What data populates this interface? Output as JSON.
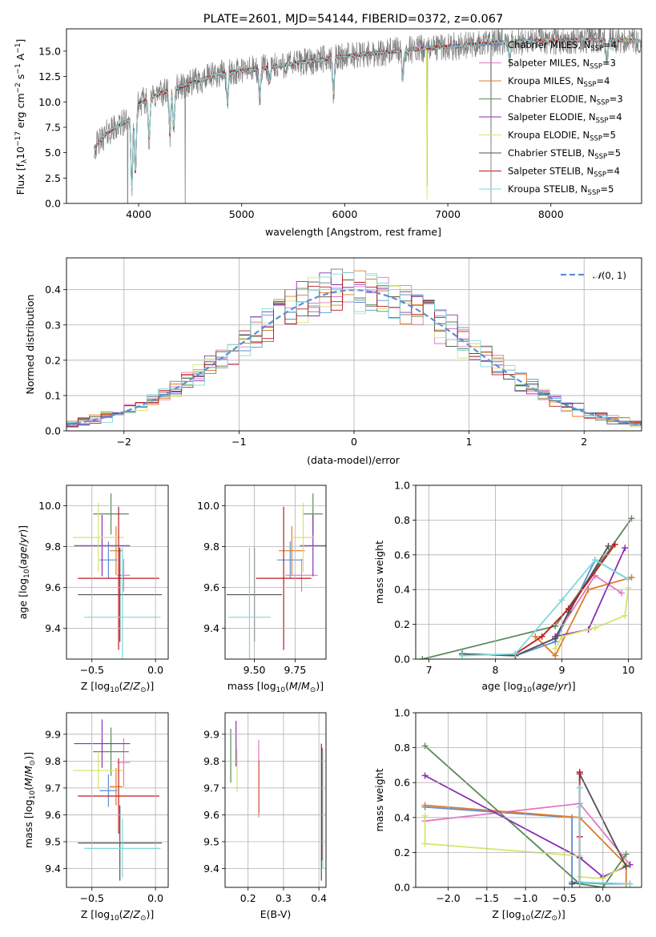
{
  "chart_data": [
    {
      "id": "spectrum",
      "type": "line",
      "title": "PLATE=2601, MJD=54144, FIBERID=0372, z=0.067",
      "xlabel": "wavelength [Angstrom, rest frame]",
      "ylabel": "Flux [fλ10⁻¹⁷ erg cm⁻² s⁻¹ A⁻¹]",
      "xlim": [
        3300,
        8880
      ],
      "ylim": [
        0,
        17.2
      ],
      "xticks": [
        4000,
        5000,
        6000,
        7000,
        8000
      ],
      "yticks": [
        0.0,
        2.5,
        5.0,
        7.5,
        10.0,
        12.5,
        15.0
      ],
      "data_color": "#808080",
      "x_range": [
        3570,
        8880
      ],
      "continuum": [
        [
          3570,
          5.5
        ],
        [
          3700,
          7.0
        ],
        [
          3900,
          8.2
        ],
        [
          4000,
          9.8
        ],
        [
          4200,
          10.8
        ],
        [
          4500,
          11.8
        ],
        [
          4800,
          12.8
        ],
        [
          5200,
          13.3
        ],
        [
          5600,
          13.9
        ],
        [
          6000,
          14.5
        ],
        [
          6500,
          15.0
        ],
        [
          6800,
          15.3
        ],
        [
          7100,
          15.5
        ],
        [
          7400,
          15.8
        ],
        [
          7800,
          16.0
        ],
        [
          8200,
          16.1
        ],
        [
          8600,
          16.1
        ],
        [
          8880,
          16.0
        ]
      ],
      "absorption": [
        [
          3934,
          7.5
        ],
        [
          3969,
          6.5
        ],
        [
          4102,
          4.0
        ],
        [
          4304,
          4.5
        ],
        [
          4340,
          4.0
        ],
        [
          4861,
          3.0
        ],
        [
          5175,
          3.0
        ],
        [
          5270,
          1.5
        ],
        [
          5890,
          3.5
        ],
        [
          6563,
          3.0
        ],
        [
          7600,
          2.0
        ],
        [
          8542,
          2.5
        ]
      ],
      "spikes": [
        [
          3895,
          -15.0
        ],
        [
          4452,
          -15.0
        ],
        [
          6800,
          -15.0
        ],
        [
          7420,
          -15.0
        ]
      ],
      "noise": 1.0,
      "series": [
        {
          "name": "Chabrier MILES, N_SSP=4",
          "color": "#5b8fd6"
        },
        {
          "name": "Salpeter MILES, N_SSP=3",
          "color": "#e377c2"
        },
        {
          "name": "Kroupa MILES, N_SSP=4",
          "color": "#e07b27"
        },
        {
          "name": "Chabrier ELODIE, N_SSP=3",
          "color": "#5a8a5a"
        },
        {
          "name": "Salpeter ELODIE, N_SSP=4",
          "color": "#8a2db3"
        },
        {
          "name": "Kroupa ELODIE, N_SSP=5",
          "color": "#d4e66b"
        },
        {
          "name": "Chabrier STELIB, N_SSP=5",
          "color": "#505050"
        },
        {
          "name": "Salpeter STELIB, N_SSP=4",
          "color": "#c0191f"
        },
        {
          "name": "Kroupa STELIB, N_SSP=5",
          "color": "#7fd8dc"
        }
      ],
      "legend_labels": [
        {
          "pre": "Chabrier MILES, N",
          "sub": "SSP",
          "post": "=4"
        },
        {
          "pre": "Salpeter MILES, N",
          "sub": "SSP",
          "post": "=3"
        },
        {
          "pre": "Kroupa MILES, N",
          "sub": "SSP",
          "post": "=4"
        },
        {
          "pre": "Chabrier ELODIE, N",
          "sub": "SSP",
          "post": "=3"
        },
        {
          "pre": "Salpeter ELODIE, N",
          "sub": "SSP",
          "post": "=4"
        },
        {
          "pre": "Kroupa ELODIE, N",
          "sub": "SSP",
          "post": "=5"
        },
        {
          "pre": "Chabrier STELIB, N",
          "sub": "SSP",
          "post": "=5"
        },
        {
          "pre": "Salpeter STELIB, N",
          "sub": "SSP",
          "post": "=4"
        },
        {
          "pre": "Kroupa STELIB, N",
          "sub": "SSP",
          "post": "=5"
        }
      ],
      "legend_position": "right"
    },
    {
      "id": "residuals",
      "type": "histogram",
      "xlabel": "(data-model)/error",
      "ylabel": "Normed distribution",
      "xlim": [
        -2.5,
        2.5
      ],
      "ylim": [
        0,
        0.49
      ],
      "xticks": [
        -2,
        -1,
        0,
        1,
        2
      ],
      "yticks": [
        0.0,
        0.1,
        0.2,
        0.3,
        0.4
      ],
      "bin_width": 0.1,
      "bin_start": -2.5,
      "reference": {
        "name": "N(0,1)",
        "color": "#5b8fd6",
        "style": "dashed",
        "sigma": 1.0
      },
      "legend_position": "top-right",
      "grid": true
    },
    {
      "id": "z_age",
      "type": "errorbar",
      "xlabel": "Z [log10(Z/Z⊙)]",
      "ylabel": "age [log10(age/yr)]",
      "xlim": [
        -0.7,
        0.1
      ],
      "ylim": [
        9.25,
        10.1
      ],
      "xticks": [
        -0.5,
        0.0
      ],
      "yticks": [
        9.4,
        9.6,
        9.8,
        10.0
      ],
      "points": [
        {
          "x": -0.37,
          "xerr": 0.07,
          "y": 9.735,
          "yerr": 0.09,
          "color": "#5b8fd6"
        },
        {
          "x": -0.25,
          "xerr": 0.05,
          "y": 9.66,
          "yerr": 0.08,
          "color": "#e377c2"
        },
        {
          "x": -0.31,
          "xerr": 0.05,
          "y": 9.78,
          "yerr": 0.12,
          "color": "#e07b27"
        },
        {
          "x": -0.35,
          "xerr": 0.14,
          "y": 9.96,
          "yerr": 0.1,
          "color": "#5a8a5a"
        },
        {
          "x": -0.42,
          "xerr": 0.22,
          "y": 9.805,
          "yerr": 0.15,
          "color": "#8a2db3"
        },
        {
          "x": -0.45,
          "xerr": 0.2,
          "y": 9.845,
          "yerr": 0.17,
          "color": "#d4e66b"
        },
        {
          "x": -0.28,
          "xerr": 0.33,
          "y": 9.565,
          "yerr": 0.23,
          "color": "#505050"
        },
        {
          "x": -0.29,
          "xerr": 0.32,
          "y": 9.645,
          "yerr": 0.35,
          "color": "#c0191f"
        },
        {
          "x": -0.26,
          "xerr": 0.3,
          "y": 9.455,
          "yerr": 0.34,
          "color": "#7fd8dc"
        }
      ]
    },
    {
      "id": "mass_age",
      "type": "errorbar",
      "xlabel": "mass [log10(M/M⊙)]",
      "ylabel": "",
      "xlim": [
        9.32,
        9.94
      ],
      "ylim": [
        9.25,
        10.1
      ],
      "xticks": [
        9.5,
        9.75
      ],
      "xtick_labels": [
        "9.50",
        "9.75"
      ],
      "yticks": [
        9.4,
        9.6,
        9.8,
        10.0
      ],
      "points": [
        {
          "x": 9.72,
          "xerr": 0.08,
          "y": 9.735,
          "yerr": 0.09,
          "color": "#5b8fd6"
        },
        {
          "x": 9.79,
          "xerr": 0.1,
          "y": 9.66,
          "yerr": 0.08,
          "color": "#e377c2"
        },
        {
          "x": 9.73,
          "xerr": 0.08,
          "y": 9.78,
          "yerr": 0.12,
          "color": "#e07b27"
        },
        {
          "x": 9.86,
          "xerr": 0.06,
          "y": 9.96,
          "yerr": 0.1,
          "color": "#5a8a5a"
        },
        {
          "x": 9.86,
          "xerr": 0.08,
          "y": 9.805,
          "yerr": 0.15,
          "color": "#8a2db3"
        },
        {
          "x": 9.8,
          "xerr": 0.07,
          "y": 9.845,
          "yerr": 0.17,
          "color": "#d4e66b"
        },
        {
          "x": 9.5,
          "xerr": 0.17,
          "y": 9.565,
          "yerr": 0.23,
          "color": "#505050"
        },
        {
          "x": 9.68,
          "xerr": 0.17,
          "y": 9.645,
          "yerr": 0.35,
          "color": "#c0191f"
        },
        {
          "x": 9.47,
          "xerr": 0.13,
          "y": 9.455,
          "yerr": 0.34,
          "color": "#7fd8dc"
        }
      ]
    },
    {
      "id": "age_weight",
      "type": "line",
      "xlabel": "age [log10(age/yr)]",
      "ylabel": "mass weight",
      "xlim": [
        6.8,
        10.2
      ],
      "ylim": [
        0,
        1
      ],
      "xticks": [
        7,
        8,
        9,
        10
      ],
      "yticks": [
        0.0,
        0.2,
        0.4,
        0.6,
        0.8,
        1.0
      ],
      "series": [
        {
          "color": "#5b8fd6",
          "x": [
            7.5,
            8.3,
            8.9,
            9.5,
            10.0
          ],
          "y": [
            0.03,
            0.02,
            0.1,
            0.57,
            0.46
          ]
        },
        {
          "color": "#e377c2",
          "x": [
            8.9,
            9.5,
            9.9
          ],
          "y": [
            0.13,
            0.48,
            0.38
          ]
        },
        {
          "color": "#e07b27",
          "x": [
            8.6,
            8.9,
            9.4,
            10.05
          ],
          "y": [
            0.13,
            0.02,
            0.4,
            0.47
          ]
        },
        {
          "color": "#5a8a5a",
          "x": [
            6.9,
            8.9,
            10.05
          ],
          "y": [
            0.0,
            0.19,
            0.81
          ]
        },
        {
          "color": "#8a2db3",
          "x": [
            8.9,
            9.4,
            9.95
          ],
          "y": [
            0.13,
            0.17,
            0.64
          ]
        },
        {
          "color": "#d4e66b",
          "x": [
            8.9,
            9.0,
            9.5,
            9.95,
            10.0
          ],
          "y": [
            0.06,
            0.13,
            0.18,
            0.25,
            0.41
          ]
        },
        {
          "color": "#505050",
          "x": [
            7.5,
            8.3,
            8.9,
            9.1,
            9.7
          ],
          "y": [
            0.03,
            0.02,
            0.12,
            0.27,
            0.65
          ]
        },
        {
          "color": "#c0191f",
          "x": [
            8.3,
            8.7,
            9.1,
            9.8
          ],
          "y": [
            0.03,
            0.13,
            0.29,
            0.66
          ]
        },
        {
          "color": "#7fd8dc",
          "x": [
            7.5,
            8.3,
            9.0,
            9.5,
            10.0
          ],
          "y": [
            0.02,
            0.03,
            0.34,
            0.57,
            0.46
          ]
        }
      ],
      "grid": true
    },
    {
      "id": "z_mass",
      "type": "errorbar",
      "xlabel": "Z [log10(Z/Z⊙)]",
      "ylabel": "mass [log10(M/M⊙)]",
      "xlim": [
        -0.7,
        0.1
      ],
      "ylim": [
        9.33,
        9.98
      ],
      "xticks": [
        -0.5,
        0.0
      ],
      "yticks": [
        9.4,
        9.5,
        9.6,
        9.7,
        9.8,
        9.9
      ],
      "points": [
        {
          "x": -0.37,
          "xerr": 0.07,
          "y": 9.69,
          "yerr": 0.06,
          "color": "#5b8fd6"
        },
        {
          "x": -0.25,
          "xerr": 0.05,
          "y": 9.795,
          "yerr": 0.09,
          "color": "#e377c2"
        },
        {
          "x": -0.31,
          "xerr": 0.05,
          "y": 9.705,
          "yerr": 0.07,
          "color": "#e07b27"
        },
        {
          "x": -0.35,
          "xerr": 0.14,
          "y": 9.835,
          "yerr": 0.09,
          "color": "#5a8a5a"
        },
        {
          "x": -0.42,
          "xerr": 0.22,
          "y": 9.865,
          "yerr": 0.09,
          "color": "#8a2db3"
        },
        {
          "x": -0.45,
          "xerr": 0.2,
          "y": 9.765,
          "yerr": 0.07,
          "color": "#d4e66b"
        },
        {
          "x": -0.28,
          "xerr": 0.33,
          "y": 9.495,
          "yerr": 0.14,
          "color": "#505050"
        },
        {
          "x": -0.29,
          "xerr": 0.32,
          "y": 9.67,
          "yerr": 0.14,
          "color": "#c0191f"
        },
        {
          "x": -0.26,
          "xerr": 0.3,
          "y": 9.475,
          "yerr": 0.11,
          "color": "#7fd8dc"
        }
      ]
    },
    {
      "id": "ebv_mass",
      "type": "errorbar",
      "xlabel": "E(B-V)",
      "ylabel": "",
      "xlim": [
        0.135,
        0.42
      ],
      "ylim": [
        9.33,
        9.98
      ],
      "xticks": [
        0.2,
        0.3,
        0.4
      ],
      "xtick_labels": [
        "0.2",
        "0.3",
        "0.4"
      ],
      "yticks": [
        9.4,
        9.5,
        9.6,
        9.7,
        9.8,
        9.9
      ],
      "points": [
        {
          "x": 0.23,
          "xerr": 0,
          "y": 9.735,
          "yerr": 0.145,
          "color": "#e377c2"
        },
        {
          "x": 0.151,
          "xerr": 0,
          "y": 9.82,
          "yerr": 0.1,
          "color": "#5a8a5a"
        },
        {
          "x": 0.166,
          "xerr": 0,
          "y": 9.865,
          "yerr": 0.085,
          "color": "#8a2db3"
        },
        {
          "x": 0.169,
          "xerr": 0,
          "y": 9.765,
          "yerr": 0.08,
          "color": "#d4e66b"
        },
        {
          "x": 0.231,
          "xerr": 0,
          "y": 9.705,
          "yerr": 0.1,
          "color": "#e07b27"
        },
        {
          "x": 0.407,
          "xerr": 0,
          "y": 9.61,
          "yerr": 0.255,
          "color": "#505050"
        },
        {
          "x": 0.409,
          "xerr": 0,
          "y": 9.64,
          "yerr": 0.21,
          "color": "#c0191f"
        },
        {
          "x": 0.411,
          "xerr": 0,
          "y": 9.62,
          "yerr": 0.22,
          "color": "#7fd8dc"
        }
      ]
    },
    {
      "id": "z_weight",
      "type": "line",
      "xlabel": "Z [log10(Z/Z⊙)]",
      "ylabel": "mass weight",
      "xlim": [
        -2.42,
        0.5
      ],
      "ylim": [
        0,
        1
      ],
      "xticks": [
        -2.0,
        -1.5,
        -1.0,
        -0.5,
        0.0
      ],
      "xtick_labels": [
        "−2.0",
        "−1.5",
        "−1.0",
        "−0.5",
        "0.0"
      ],
      "yticks": [
        0.0,
        0.2,
        0.4,
        0.6,
        0.8,
        1.0
      ],
      "series": [
        {
          "color": "#5b8fd6",
          "x": [
            -2.3,
            -0.4,
            -0.4,
            0.0,
            0.35
          ],
          "y": [
            0.46,
            0.4,
            0.03,
            0.02,
            0.02
          ]
        },
        {
          "color": "#e377c2",
          "x": [
            -2.3,
            -0.3,
            0.35
          ],
          "y": [
            0.38,
            0.48,
            0.13
          ]
        },
        {
          "color": "#e07b27",
          "x": [
            -2.3,
            -0.3,
            0.3,
            0.3
          ],
          "y": [
            0.47,
            0.4,
            0.13,
            0.02
          ]
        },
        {
          "color": "#5a8a5a",
          "x": [
            -2.3,
            -0.3,
            0.0,
            0.3
          ],
          "y": [
            0.81,
            0.02,
            0.0,
            0.19
          ]
        },
        {
          "color": "#8a2db3",
          "x": [
            -2.3,
            -0.3,
            0.0,
            0.35
          ],
          "y": [
            0.64,
            0.17,
            0.06,
            0.13
          ]
        },
        {
          "color": "#d4e66b",
          "x": [
            -2.3,
            -2.3,
            -0.3,
            -0.3,
            0.0,
            0.3
          ],
          "y": [
            0.41,
            0.25,
            0.18,
            0.06,
            0.05,
            0.13
          ]
        },
        {
          "color": "#505050",
          "x": [
            -0.4,
            -0.3,
            -0.3,
            0.3
          ],
          "y": [
            0.02,
            0.03,
            0.65,
            0.12
          ]
        },
        {
          "color": "#c0191f",
          "x": [
            -0.3,
            -0.3,
            -0.3
          ],
          "y": [
            0.03,
            0.29,
            0.66
          ]
        },
        {
          "color": "#7fd8dc",
          "x": [
            -0.3,
            -0.3,
            -0.3,
            0.35
          ],
          "y": [
            0.46,
            0.57,
            0.03,
            0.02
          ]
        }
      ],
      "grid": true
    }
  ]
}
